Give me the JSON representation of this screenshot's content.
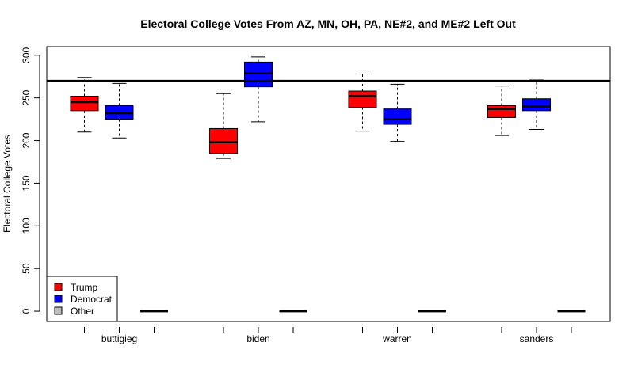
{
  "chart_data": {
    "type": "boxplot",
    "title": "Electoral College Votes From AZ, MN, OH, PA, NE#2, and ME#2 Left Out",
    "ylabel": "Electoral College Votes",
    "xlabel": "",
    "ylim": [
      -12,
      310
    ],
    "yticks": [
      0,
      50,
      100,
      150,
      200,
      250,
      300
    ],
    "reference_line": 270,
    "categories": [
      "buttigieg",
      "biden",
      "warren",
      "sanders"
    ],
    "series": [
      {
        "name": "Trump",
        "color": "#ff0000"
      },
      {
        "name": "Democrat",
        "color": "#0000ff"
      },
      {
        "name": "Other",
        "color": "#bebebe"
      }
    ],
    "boxes": [
      {
        "category": "buttigieg",
        "series": "Trump",
        "min": 210,
        "q1": 235,
        "median": 245,
        "q3": 252,
        "max": 274
      },
      {
        "category": "buttigieg",
        "series": "Democrat",
        "min": 203,
        "q1": 225,
        "median": 232,
        "q3": 241,
        "max": 267
      },
      {
        "category": "buttigieg",
        "series": "Other",
        "min": 0,
        "q1": 0,
        "median": 0,
        "q3": 0,
        "max": 0
      },
      {
        "category": "biden",
        "series": "Trump",
        "min": 179,
        "q1": 185,
        "median": 198,
        "q3": 214,
        "max": 255
      },
      {
        "category": "biden",
        "series": "Democrat",
        "min": 222,
        "q1": 263,
        "median": 279,
        "q3": 292,
        "max": 298
      },
      {
        "category": "biden",
        "series": "Other",
        "min": 0,
        "q1": 0,
        "median": 0,
        "q3": 0,
        "max": 0
      },
      {
        "category": "warren",
        "series": "Trump",
        "min": 211,
        "q1": 239,
        "median": 252,
        "q3": 258,
        "max": 278
      },
      {
        "category": "warren",
        "series": "Democrat",
        "min": 199,
        "q1": 219,
        "median": 225,
        "q3": 237,
        "max": 266
      },
      {
        "category": "warren",
        "series": "Other",
        "min": 0,
        "q1": 0,
        "median": 0,
        "q3": 0,
        "max": 0
      },
      {
        "category": "sanders",
        "series": "Trump",
        "min": 206,
        "q1": 227,
        "median": 237,
        "q3": 241,
        "max": 264
      },
      {
        "category": "sanders",
        "series": "Democrat",
        "min": 213,
        "q1": 235,
        "median": 240,
        "q3": 249,
        "max": 271
      },
      {
        "category": "sanders",
        "series": "Other",
        "min": 0,
        "q1": 0,
        "median": 0,
        "q3": 0,
        "max": 0
      }
    ],
    "legend": {
      "position": "bottom-left",
      "entries": [
        "Trump",
        "Democrat",
        "Other"
      ]
    },
    "grid": false
  }
}
